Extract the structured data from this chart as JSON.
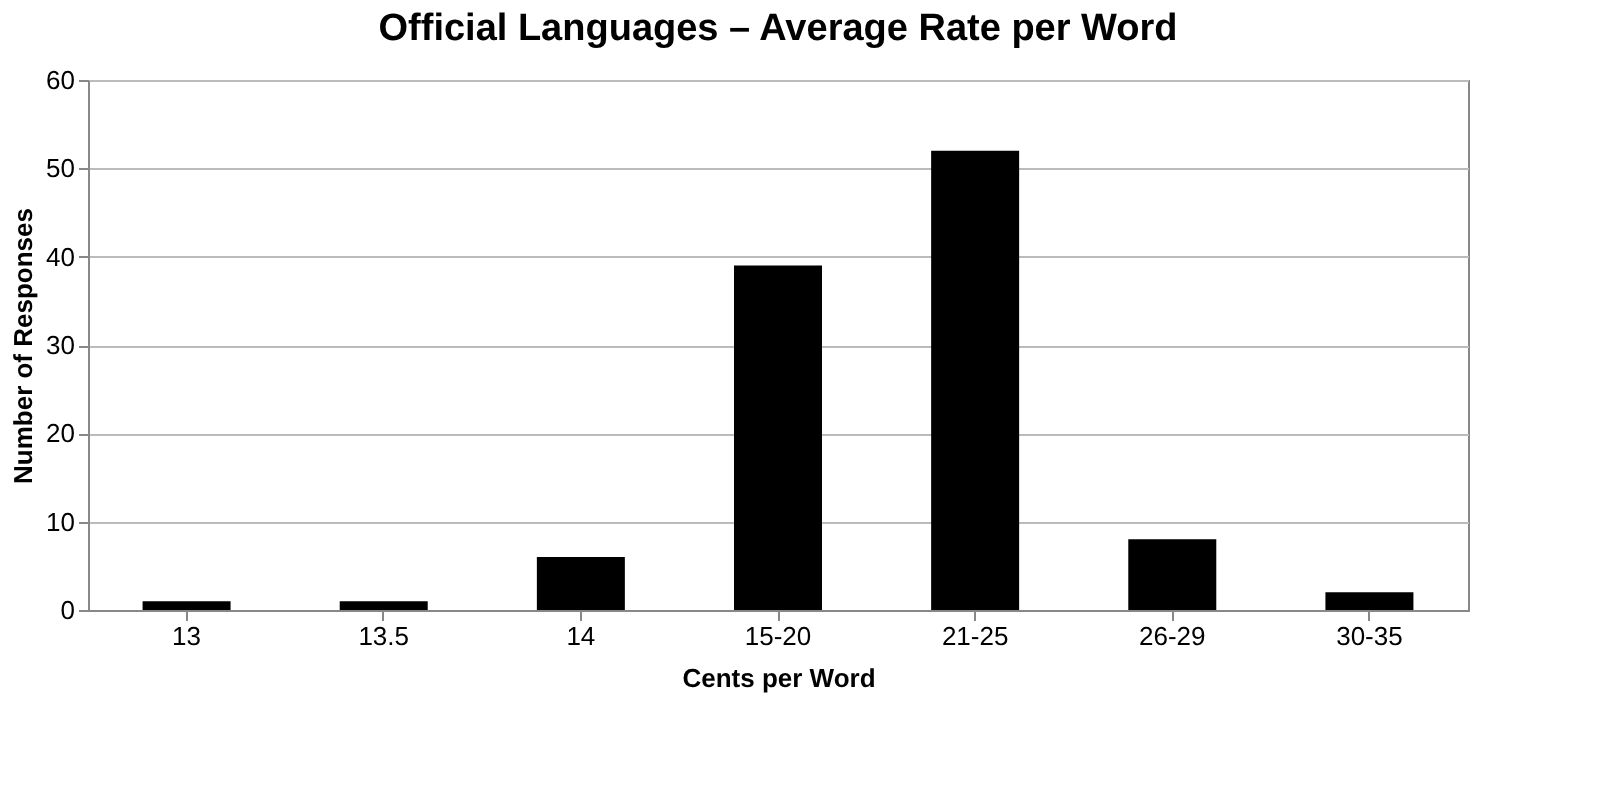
{
  "chart_data": {
    "type": "bar",
    "title": "Official Languages – Average Rate per Word",
    "xlabel": "Cents per Word",
    "ylabel": "Number of Responses",
    "categories": [
      "13",
      "13.5",
      "14",
      "15-20",
      "21-25",
      "26-29",
      "30-35"
    ],
    "values": [
      1,
      1,
      6,
      39,
      52,
      8,
      2
    ],
    "color": "#000000",
    "ylim": [
      0,
      60
    ],
    "yticks": [
      0,
      10,
      20,
      30,
      40,
      50,
      60
    ],
    "grid": "y"
  }
}
